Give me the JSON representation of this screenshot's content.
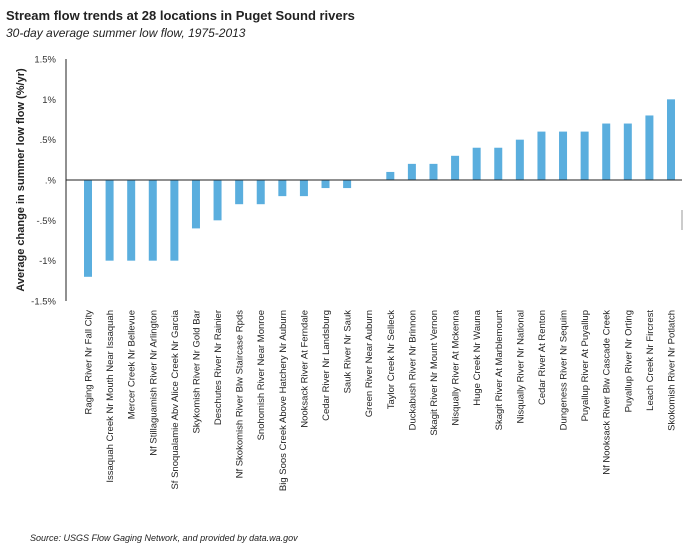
{
  "title": "Stream flow trends at 28 locations in Puget Sound rivers",
  "subtitle": "30-day average summer low flow, 1975-2013",
  "source": "Source: USGS Flow Gaging Network, and provided by data.wa.gov",
  "bar_color": "#5aaede",
  "chart_data": {
    "type": "bar",
    "title": "Stream flow trends at 28 locations in Puget Sound rivers",
    "subtitle": "30-day average summer low flow, 1975-2013",
    "xlabel": "",
    "ylabel": "Average change in summer low flow (%/yr)",
    "ylim": [
      -1.5,
      1.5
    ],
    "yticks": [
      1.5,
      1.0,
      0.5,
      0.0,
      -0.5,
      -1.0,
      -1.5
    ],
    "ytick_labels": [
      "1.5%",
      "1%",
      ".5%",
      ".%",
      "-.5%",
      "-1%",
      "-1.5%"
    ],
    "grid": false,
    "categories": [
      "Raging River Nr Fall City",
      "Issaquah Creek Nr Mouth Near Issaquah",
      "Mercer Creek Nr Bellevue",
      "Nf Stillaguamish River Nr Arlington",
      "Sf Snoqualamie Abv Alice Creek Nr Garcia",
      "Skykomish River Nr Gold Bar",
      "Deschutes River Nr Rainier",
      "Nf Skokomish River Blw Staircase Rpds",
      "Snohomish River Near Monroe",
      "Big Soos Creek Above Hatchery Nr Auburn",
      "Nooksack River At Ferndale",
      "Cedar River Nr Landsburg",
      "Sauk River Nr Sauk",
      "Green River Near Auburn",
      "Taylor Creek Nr Selleck",
      "Duckabush River Nr Brinnon",
      "Skagit River Nr Mount Vernon",
      "Nisqually River At Mckenna",
      "Huge Creek Nr Wauna",
      "Skagit River At Marblemount",
      "Nisqually River Nr National",
      "Cedar River At Renton",
      "Dungeness River Nr Sequim",
      "Puyallup River At Puyallup",
      "Nf Nooksack River Blw Cascade Creek",
      "Puyallup River Nr Orting",
      "Leach Creek Nr Fircrest",
      "Skokomish River Nr Potlatch"
    ],
    "values": [
      -1.2,
      -1.0,
      -1.0,
      -1.0,
      -1.0,
      -0.6,
      -0.5,
      -0.3,
      -0.3,
      -0.2,
      -0.2,
      -0.1,
      -0.1,
      0.0,
      0.1,
      0.2,
      0.2,
      0.3,
      0.4,
      0.4,
      0.5,
      0.6,
      0.6,
      0.6,
      0.7,
      0.7,
      0.8,
      1.0
    ]
  }
}
